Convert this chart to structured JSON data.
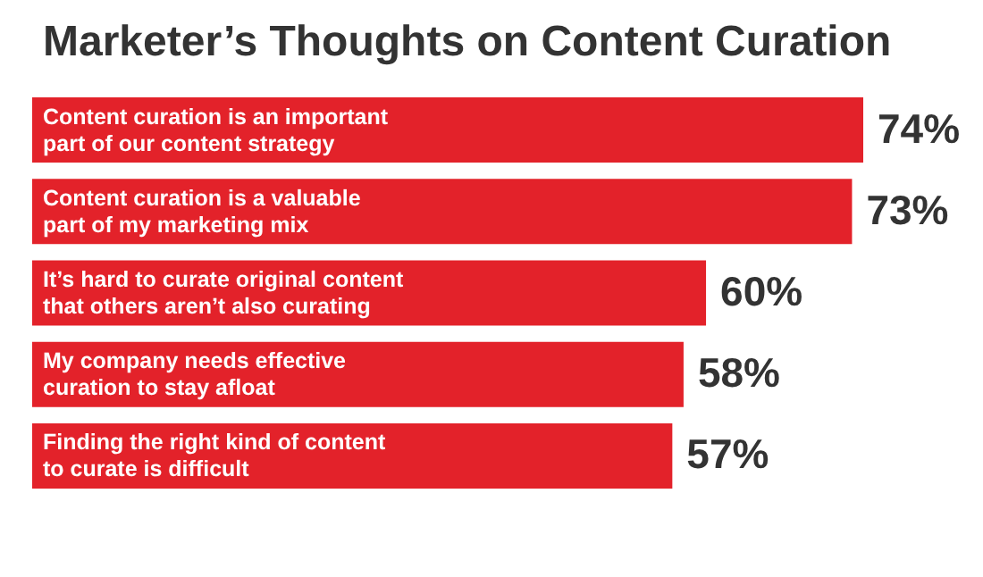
{
  "chart_data": {
    "type": "bar",
    "orientation": "horizontal",
    "title": "Marketer’s Thoughts on Content Curation",
    "categories": [
      "Content curation is an important\npart of our content strategy",
      "Content curation is a valuable\npart of my marketing mix",
      "It’s hard to curate original content\nthat others aren’t also curating",
      "My company needs effective\ncuration to stay afloat",
      "Finding the right kind of content\nto curate is difficult"
    ],
    "values": [
      74,
      73,
      60,
      58,
      57
    ],
    "value_labels": [
      "74%",
      "73%",
      "60%",
      "58%",
      "57%"
    ],
    "color": "#e3222a"
  }
}
